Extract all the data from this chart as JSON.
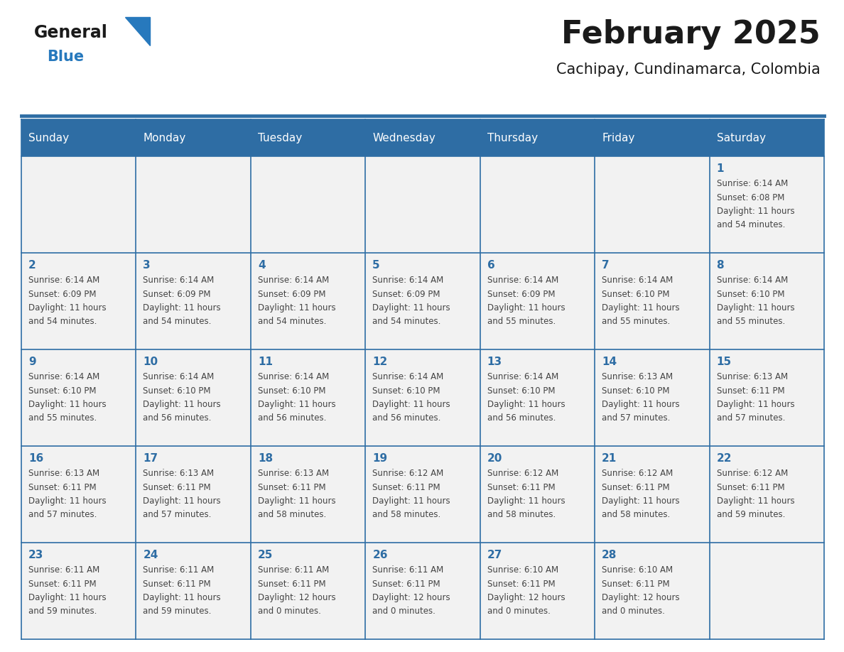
{
  "title": "February 2025",
  "subtitle": "Cachipay, Cundinamarca, Colombia",
  "days_of_week": [
    "Sunday",
    "Monday",
    "Tuesday",
    "Wednesday",
    "Thursday",
    "Friday",
    "Saturday"
  ],
  "header_bg": "#2E6DA4",
  "header_text": "#FFFFFF",
  "cell_bg": "#F2F2F2",
  "border_color": "#2E6DA4",
  "day_num_color": "#2E6DA4",
  "cell_text_color": "#444444",
  "title_color": "#1a1a1a",
  "subtitle_color": "#1a1a1a",
  "logo_general_color": "#1a1a1a",
  "logo_blue_color": "#2779BD",
  "calendar_data": {
    "1": {
      "sunrise": "6:14 AM",
      "sunset": "6:08 PM",
      "daylight_h": "11",
      "daylight_m": "54"
    },
    "2": {
      "sunrise": "6:14 AM",
      "sunset": "6:09 PM",
      "daylight_h": "11",
      "daylight_m": "54"
    },
    "3": {
      "sunrise": "6:14 AM",
      "sunset": "6:09 PM",
      "daylight_h": "11",
      "daylight_m": "54"
    },
    "4": {
      "sunrise": "6:14 AM",
      "sunset": "6:09 PM",
      "daylight_h": "11",
      "daylight_m": "54"
    },
    "5": {
      "sunrise": "6:14 AM",
      "sunset": "6:09 PM",
      "daylight_h": "11",
      "daylight_m": "54"
    },
    "6": {
      "sunrise": "6:14 AM",
      "sunset": "6:09 PM",
      "daylight_h": "11",
      "daylight_m": "55"
    },
    "7": {
      "sunrise": "6:14 AM",
      "sunset": "6:10 PM",
      "daylight_h": "11",
      "daylight_m": "55"
    },
    "8": {
      "sunrise": "6:14 AM",
      "sunset": "6:10 PM",
      "daylight_h": "11",
      "daylight_m": "55"
    },
    "9": {
      "sunrise": "6:14 AM",
      "sunset": "6:10 PM",
      "daylight_h": "11",
      "daylight_m": "55"
    },
    "10": {
      "sunrise": "6:14 AM",
      "sunset": "6:10 PM",
      "daylight_h": "11",
      "daylight_m": "56"
    },
    "11": {
      "sunrise": "6:14 AM",
      "sunset": "6:10 PM",
      "daylight_h": "11",
      "daylight_m": "56"
    },
    "12": {
      "sunrise": "6:14 AM",
      "sunset": "6:10 PM",
      "daylight_h": "11",
      "daylight_m": "56"
    },
    "13": {
      "sunrise": "6:14 AM",
      "sunset": "6:10 PM",
      "daylight_h": "11",
      "daylight_m": "56"
    },
    "14": {
      "sunrise": "6:13 AM",
      "sunset": "6:10 PM",
      "daylight_h": "11",
      "daylight_m": "57"
    },
    "15": {
      "sunrise": "6:13 AM",
      "sunset": "6:11 PM",
      "daylight_h": "11",
      "daylight_m": "57"
    },
    "16": {
      "sunrise": "6:13 AM",
      "sunset": "6:11 PM",
      "daylight_h": "11",
      "daylight_m": "57"
    },
    "17": {
      "sunrise": "6:13 AM",
      "sunset": "6:11 PM",
      "daylight_h": "11",
      "daylight_m": "57"
    },
    "18": {
      "sunrise": "6:13 AM",
      "sunset": "6:11 PM",
      "daylight_h": "11",
      "daylight_m": "58"
    },
    "19": {
      "sunrise": "6:12 AM",
      "sunset": "6:11 PM",
      "daylight_h": "11",
      "daylight_m": "58"
    },
    "20": {
      "sunrise": "6:12 AM",
      "sunset": "6:11 PM",
      "daylight_h": "11",
      "daylight_m": "58"
    },
    "21": {
      "sunrise": "6:12 AM",
      "sunset": "6:11 PM",
      "daylight_h": "11",
      "daylight_m": "58"
    },
    "22": {
      "sunrise": "6:12 AM",
      "sunset": "6:11 PM",
      "daylight_h": "11",
      "daylight_m": "59"
    },
    "23": {
      "sunrise": "6:11 AM",
      "sunset": "6:11 PM",
      "daylight_h": "11",
      "daylight_m": "59"
    },
    "24": {
      "sunrise": "6:11 AM",
      "sunset": "6:11 PM",
      "daylight_h": "11",
      "daylight_m": "59"
    },
    "25": {
      "sunrise": "6:11 AM",
      "sunset": "6:11 PM",
      "daylight_h": "12",
      "daylight_m": "0"
    },
    "26": {
      "sunrise": "6:11 AM",
      "sunset": "6:11 PM",
      "daylight_h": "12",
      "daylight_m": "0"
    },
    "27": {
      "sunrise": "6:10 AM",
      "sunset": "6:11 PM",
      "daylight_h": "12",
      "daylight_m": "0"
    },
    "28": {
      "sunrise": "6:10 AM",
      "sunset": "6:11 PM",
      "daylight_h": "12",
      "daylight_m": "0"
    }
  },
  "week_layout": [
    [
      null,
      null,
      null,
      null,
      null,
      null,
      1
    ],
    [
      2,
      3,
      4,
      5,
      6,
      7,
      8
    ],
    [
      9,
      10,
      11,
      12,
      13,
      14,
      15
    ],
    [
      16,
      17,
      18,
      19,
      20,
      21,
      22
    ],
    [
      23,
      24,
      25,
      26,
      27,
      28,
      null
    ]
  ]
}
